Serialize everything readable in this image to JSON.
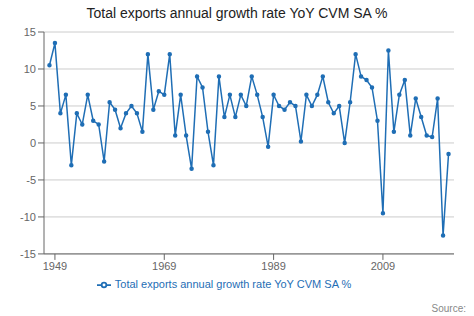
{
  "chart_data": {
    "type": "line",
    "title": "Total exports annual growth rate YoY CVM SA %",
    "annotations": [
      "Source:"
    ],
    "x": [
      1948,
      1949,
      1950,
      1951,
      1952,
      1953,
      1954,
      1955,
      1956,
      1957,
      1958,
      1959,
      1960,
      1961,
      1962,
      1963,
      1964,
      1965,
      1966,
      1967,
      1968,
      1969,
      1970,
      1971,
      1972,
      1973,
      1974,
      1975,
      1976,
      1977,
      1978,
      1979,
      1980,
      1981,
      1982,
      1983,
      1984,
      1985,
      1986,
      1987,
      1988,
      1989,
      1990,
      1991,
      1992,
      1993,
      1994,
      1995,
      1996,
      1997,
      1998,
      1999,
      2000,
      2001,
      2002,
      2003,
      2004,
      2005,
      2006,
      2007,
      2008,
      2009,
      2010,
      2011,
      2012,
      2013,
      2014,
      2015,
      2016,
      2017,
      2018,
      2019,
      2020,
      2021
    ],
    "series": [
      {
        "name": "Total exports annual growth rate YoY CVM SA %",
        "color": "#1f6eb5",
        "marker": "circle",
        "values": [
          10.5,
          13.5,
          4.0,
          6.5,
          -3.0,
          4.0,
          2.5,
          6.5,
          3.0,
          2.5,
          -2.5,
          5.5,
          4.5,
          2.0,
          4.0,
          5.0,
          4.0,
          1.5,
          12.0,
          4.5,
          7.0,
          6.5,
          12.0,
          1.0,
          6.5,
          1.0,
          -3.5,
          9.0,
          7.5,
          1.5,
          -3.0,
          9.0,
          3.5,
          6.5,
          3.5,
          6.5,
          5.0,
          9.0,
          6.5,
          3.5,
          -0.5,
          6.5,
          5.0,
          4.5,
          5.5,
          5.0,
          0.2,
          6.5,
          5.0,
          6.5,
          9.0,
          5.5,
          4.0,
          5.0,
          0.0,
          5.5,
          12.0,
          9.0,
          8.5,
          7.5,
          3.0,
          -9.5,
          12.5,
          1.5,
          6.5,
          8.5,
          1.0,
          6.0,
          3.5,
          1.0,
          0.8,
          6.0,
          -12.5,
          -1.5
        ]
      }
    ],
    "xlim": [
      1947,
      2022
    ],
    "xticks": [
      1949,
      1969,
      1989,
      2009
    ],
    "ylim": [
      -15,
      15
    ],
    "yticks": [
      -15,
      -10,
      -5,
      0,
      5,
      10,
      15
    ],
    "grid": "y",
    "legend": "bottom"
  }
}
